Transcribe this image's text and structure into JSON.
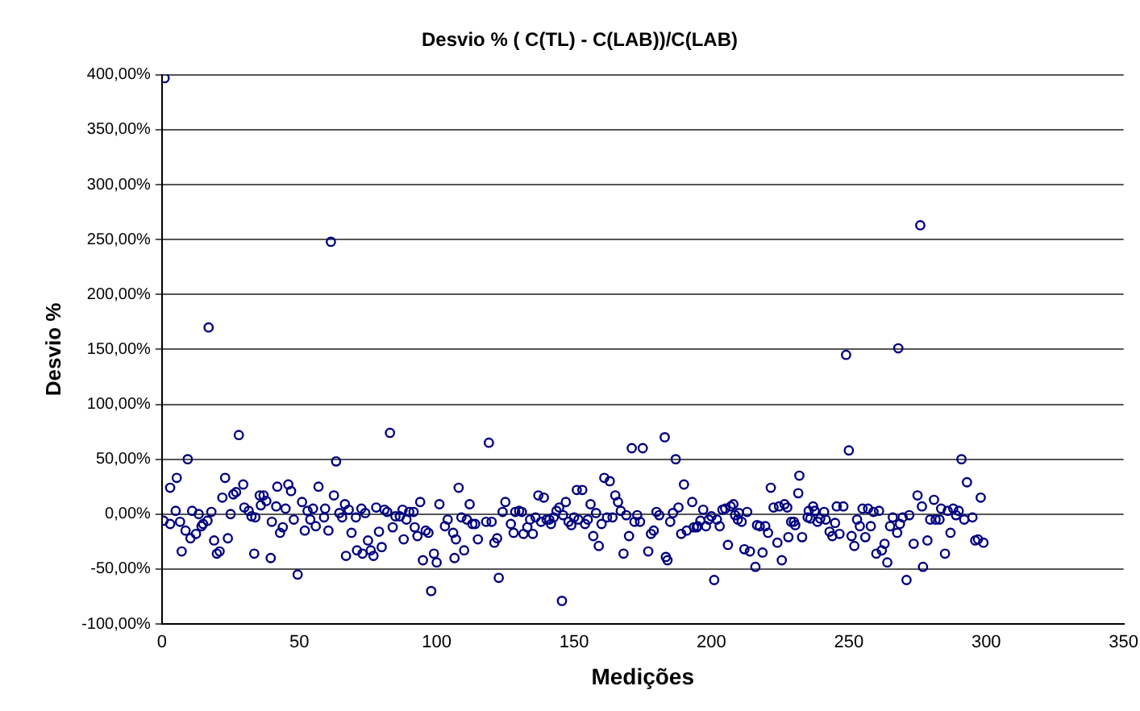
{
  "chart_data": {
    "type": "scatter",
    "title": "Desvio % ( C(TL) - C(LAB))/C(LAB)",
    "xlabel": "Medições",
    "ylabel": "Desvio %",
    "xlim": [
      0,
      350
    ],
    "xticks": [
      0,
      50,
      100,
      150,
      200,
      250,
      300,
      350
    ],
    "ylim": [
      -100,
      400
    ],
    "yticks": [
      {
        "value": -100,
        "label": "-100,00%"
      },
      {
        "value": -50,
        "label": "-50,00%"
      },
      {
        "value": 0,
        "label": "0,00%"
      },
      {
        "value": 50,
        "label": "50,00%"
      },
      {
        "value": 100,
        "label": "100,00%"
      },
      {
        "value": 150,
        "label": "150,00%"
      },
      {
        "value": 200,
        "label": "200,00%"
      },
      {
        "value": 250,
        "label": "250,00%"
      },
      {
        "value": 300,
        "label": "300,00%"
      },
      {
        "value": 350,
        "label": "350,00%"
      },
      {
        "value": 400,
        "label": "400,00%"
      }
    ],
    "grid": "y",
    "legend": false,
    "marker": "circle",
    "series": [
      {
        "color": "#000080",
        "x": [
          1,
          17,
          61.5,
          249,
          268,
          276,
          0.6,
          3,
          3,
          5,
          5.4,
          6.6,
          7.2,
          8.6,
          9.4,
          10.4,
          11,
          12.4,
          13.4,
          14.4,
          15,
          16.6,
          18,
          19,
          20,
          21,
          22,
          23,
          24,
          25,
          26,
          27,
          28,
          29.6,
          30,
          31.6,
          32.6,
          33.6,
          34,
          35.6,
          36,
          37,
          38,
          39.6,
          40,
          41.6,
          42,
          43,
          44,
          45,
          46,
          47,
          48,
          49.4,
          51,
          52,
          53,
          54,
          55,
          56,
          57,
          59,
          59.4,
          60.6,
          62.6,
          63.4,
          64.6,
          65.6,
          66.6,
          67,
          68,
          69,
          70.6,
          71,
          72.6,
          73,
          74,
          75,
          76,
          77,
          78,
          79,
          80,
          81,
          82,
          83,
          84,
          85,
          86.6,
          87.6,
          88,
          89,
          90,
          91.6,
          92,
          93,
          94,
          95,
          96,
          97,
          98,
          99,
          100,
          101,
          103,
          104,
          106,
          106.5,
          107,
          108,
          109,
          110,
          111,
          112,
          113,
          114,
          115,
          118,
          119,
          120,
          121,
          122,
          122.6,
          124,
          125,
          127,
          128,
          128.6,
          130,
          131,
          131.6,
          133,
          134,
          135,
          136,
          137,
          138,
          139,
          140,
          141,
          141.6,
          142.6,
          143.6,
          144.6,
          145.6,
          146,
          147,
          148,
          149,
          150,
          151,
          151.6,
          153,
          154,
          155,
          156,
          157,
          158,
          159,
          160,
          161,
          162,
          163,
          164,
          165,
          166,
          167,
          168,
          169,
          170,
          171,
          172,
          173,
          174,
          175,
          177,
          178,
          179,
          180,
          181,
          183,
          183.4,
          184,
          185,
          186,
          187,
          188,
          189,
          190,
          191,
          193,
          193.6,
          194.6,
          195,
          196,
          197,
          198,
          199,
          200,
          201,
          202,
          203,
          204,
          205,
          206,
          207,
          208,
          208.6,
          209.6,
          210,
          211,
          212,
          213,
          214,
          216,
          216.6,
          217.6,
          218.6,
          219.6,
          220.6,
          221.6,
          222.6,
          224,
          224.6,
          225.6,
          226.6,
          227.6,
          228,
          229,
          230,
          230.5,
          231.6,
          232,
          233,
          235,
          235.4,
          236,
          237,
          237.6,
          238.6,
          239.6,
          241,
          241.6,
          243,
          244,
          245,
          245.6,
          246.6,
          248,
          250,
          251,
          252,
          253,
          254,
          255,
          256,
          257,
          258,
          259,
          260,
          261,
          262,
          263,
          264,
          265,
          266,
          267.6,
          268.6,
          269.6,
          271,
          272,
          273.6,
          275,
          276.6,
          277,
          278.6,
          279.6,
          281,
          281.6,
          283,
          283.6,
          285,
          286,
          287,
          288,
          289,
          290,
          291,
          292,
          293,
          295,
          296,
          297,
          298,
          299
        ],
        "values": [
          397,
          170,
          248,
          145,
          151,
          263,
          -6,
          -9,
          24,
          3,
          33,
          -7,
          -34,
          -15,
          50,
          -22,
          3,
          -18,
          0,
          -11,
          -9,
          -6,
          2,
          -24,
          -36,
          -34,
          15,
          33,
          -22,
          0,
          18,
          20,
          72,
          27,
          6,
          3,
          -2,
          -36,
          -3,
          17,
          8,
          17,
          12,
          -40,
          -7,
          7,
          25,
          -17,
          -12,
          5,
          27,
          21,
          -5,
          -55,
          11,
          -15,
          3,
          -5,
          5,
          -11,
          25,
          -3,
          5,
          -15,
          17,
          48,
          1,
          -3,
          9,
          -38,
          4,
          -17,
          -3,
          -33,
          5,
          -36,
          1,
          -24,
          -33,
          -38,
          6,
          -16,
          -30,
          4,
          2,
          74,
          -12,
          -2,
          -2,
          4,
          -23,
          -5,
          2,
          2,
          -12,
          -20,
          11,
          -42,
          -15,
          -17,
          -70,
          -36,
          -44,
          9,
          -11,
          -5,
          -17,
          -40,
          -23,
          24,
          -3,
          -33,
          -5,
          9,
          -9,
          -9,
          -23,
          -7,
          65,
          -7,
          -26,
          -22,
          -58,
          2,
          11,
          -9,
          -17,
          2,
          3,
          2,
          -18,
          -12,
          -5,
          -18,
          -3,
          17,
          -7,
          15,
          -5,
          -5,
          -9,
          -3,
          3,
          6,
          -79,
          -1,
          11,
          -7,
          -10,
          -3,
          22,
          -5,
          22,
          -9,
          -5,
          9,
          -20,
          1,
          -29,
          -9,
          33,
          -3,
          30,
          -3,
          17,
          11,
          3,
          -36,
          -1,
          -20,
          60,
          -7,
          -1,
          -7,
          60,
          -34,
          -18,
          -15,
          2,
          -1,
          70,
          -39,
          -42,
          -7,
          1,
          50,
          6,
          -18,
          27,
          -15,
          11,
          -12,
          -12,
          -11,
          -6,
          4,
          -11,
          -5,
          -2,
          -60,
          -5,
          -11,
          4,
          5,
          -28,
          7,
          9,
          -1,
          -5,
          1,
          -7,
          -32,
          2,
          -34,
          -48,
          -10,
          -11,
          -35,
          -11,
          -17,
          24,
          6,
          -26,
          7,
          -42,
          9,
          6,
          -21,
          -7,
          -7,
          -10,
          19,
          35,
          -21,
          -3,
          3,
          -4,
          7,
          3,
          -7,
          -4,
          2,
          -5,
          -16,
          -20,
          -8,
          7,
          -18,
          7,
          58,
          -20,
          -29,
          -5,
          -11,
          5,
          -21,
          5,
          -11,
          2,
          -36,
          3,
          -33,
          -27,
          -44,
          -11,
          -3,
          -17,
          -9,
          -3,
          -60,
          -1,
          -27,
          17,
          7,
          -48,
          -24,
          -5,
          13,
          -5,
          -5,
          5,
          -36,
          3,
          -17,
          5,
          -1,
          3,
          50,
          -5,
          29,
          -3,
          -24,
          -23,
          15,
          -26
        ]
      }
    ]
  }
}
